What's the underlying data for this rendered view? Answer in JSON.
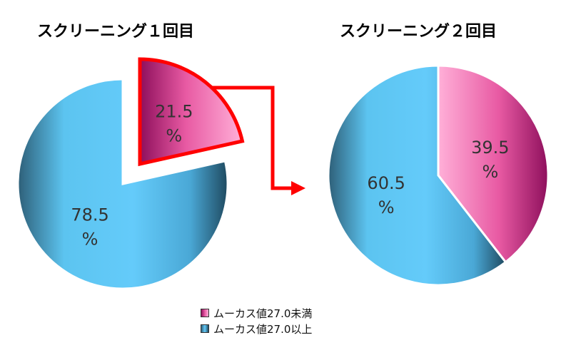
{
  "chart_data": [
    {
      "type": "pie",
      "title": "スクリーニング１回目",
      "slices": [
        {
          "label": "ムーカス値27.0未満",
          "value": 21.5,
          "value_label": "21.5",
          "unit": "%",
          "color": "#e9559f"
        },
        {
          "label": "ムーカス値27.0以上",
          "value": 78.5,
          "value_label": "78.5",
          "unit": "%",
          "color": "#4fb9ea"
        }
      ],
      "exploded_slice": "ムーカス値27.0未満",
      "legend_position": "bottom-center"
    },
    {
      "type": "pie",
      "title": "スクリーニング２回目",
      "slices": [
        {
          "label": "ムーカス値27.0未満",
          "value": 39.5,
          "value_label": "39.5",
          "unit": "%",
          "color": "#e9559f"
        },
        {
          "label": "ムーカス値27.0以上",
          "value": 60.5,
          "value_label": "60.5",
          "unit": "%",
          "color": "#4fb9ea"
        }
      ],
      "legend_position": "bottom-center"
    }
  ],
  "legend": [
    {
      "label": "ムーカス値27.0未満",
      "color": "#e9559f"
    },
    {
      "label": "ムーカス値27.0以上",
      "color": "#4fb9ea"
    }
  ],
  "connector_color": "#ff0000"
}
